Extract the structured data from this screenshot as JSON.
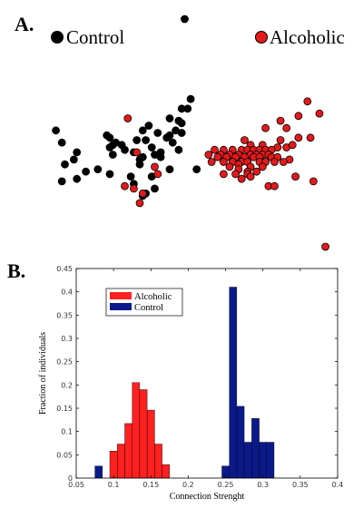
{
  "panel_a": {
    "letter": "A.",
    "legend": [
      {
        "label": "Control",
        "color": "#000000"
      },
      {
        "label": "Alcoholic",
        "color": "#e31a1c"
      }
    ]
  },
  "panel_b": {
    "letter": "B."
  },
  "colors": {
    "control": "#000000",
    "alcoholic": "#e31a1c",
    "control_bar": "#0b1a8a",
    "alcoholic_bar": "#ff2020"
  },
  "chart_data": [
    {
      "type": "scatter",
      "title": "",
      "xlabel": "",
      "ylabel": "",
      "axes_visible": false,
      "xlim": [
        0,
        100
      ],
      "ylim": [
        0,
        100
      ],
      "series": [
        {
          "name": "Control",
          "color": "#000000",
          "points": [
            [
              45,
              97
            ],
            [
              47,
              64
            ],
            [
              44,
              60
            ],
            [
              46,
              60
            ],
            [
              40,
              56
            ],
            [
              43,
              55
            ],
            [
              44,
              54
            ],
            [
              33,
              53
            ],
            [
              31,
              51
            ],
            [
              42,
              51
            ],
            [
              36,
              50
            ],
            [
              44,
              50
            ],
            [
              2,
              51
            ],
            [
              40,
              49
            ],
            [
              19,
              49
            ],
            [
              20,
              48
            ],
            [
              39,
              48
            ],
            [
              29,
              47
            ],
            [
              32,
              47
            ],
            [
              22,
              46
            ],
            [
              21,
              45
            ],
            [
              41,
              46
            ],
            [
              24,
              45
            ],
            [
              4,
              46
            ],
            [
              20,
              44
            ],
            [
              34,
              44
            ],
            [
              25,
              43
            ],
            [
              43,
              43
            ],
            [
              9,
              42
            ],
            [
              28,
              42
            ],
            [
              37,
              42
            ],
            [
              21,
              41
            ],
            [
              35,
              41
            ],
            [
              31,
              40
            ],
            [
              37,
              40
            ],
            [
              30,
              39
            ],
            [
              8,
              39
            ],
            [
              5,
              37
            ],
            [
              30,
              37
            ],
            [
              49,
              35
            ],
            [
              40,
              35
            ],
            [
              12,
              34
            ],
            [
              16,
              35
            ],
            [
              20,
              33
            ],
            [
              27,
              32
            ],
            [
              34,
              32
            ],
            [
              9,
              31
            ],
            [
              4,
              30
            ],
            [
              35,
              27
            ],
            [
              32,
              25
            ],
            [
              31,
              24
            ],
            [
              28,
              29
            ]
          ]
        },
        {
          "name": "Alcoholic",
          "color": "#e31a1c",
          "points": [
            [
              86,
              63
            ],
            [
              83,
              57
            ],
            [
              90,
              58
            ],
            [
              26,
              56
            ],
            [
              77,
              55
            ],
            [
              72,
              52
            ],
            [
              79,
              52
            ],
            [
              83,
              48
            ],
            [
              87,
              48
            ],
            [
              65,
              47
            ],
            [
              77,
              47
            ],
            [
              67,
              45
            ],
            [
              71,
              45
            ],
            [
              76,
              44
            ],
            [
              79,
              44
            ],
            [
              81,
              45
            ],
            [
              55,
              43
            ],
            [
              58,
              43
            ],
            [
              61,
              43
            ],
            [
              64,
              43
            ],
            [
              66,
              43
            ],
            [
              68,
              43
            ],
            [
              70,
              43
            ],
            [
              72,
              43
            ],
            [
              74,
              43
            ],
            [
              57,
              41
            ],
            [
              60,
              41
            ],
            [
              63,
              41
            ],
            [
              67,
              41
            ],
            [
              69,
              41
            ],
            [
              71,
              41
            ],
            [
              73,
              41
            ],
            [
              29,
              42
            ],
            [
              53,
              41
            ],
            [
              56,
              40
            ],
            [
              59,
              40
            ],
            [
              62,
              40
            ],
            [
              65,
              40
            ],
            [
              68,
              40
            ],
            [
              70,
              40
            ],
            [
              74,
              40
            ],
            [
              76,
              40
            ],
            [
              80,
              39
            ],
            [
              54,
              38
            ],
            [
              58,
              38
            ],
            [
              61,
              38
            ],
            [
              64,
              38
            ],
            [
              66,
              38
            ],
            [
              70,
              38
            ],
            [
              72,
              38
            ],
            [
              75,
              38
            ],
            [
              78,
              38
            ],
            [
              63,
              37
            ],
            [
              67,
              36
            ],
            [
              71,
              36
            ],
            [
              60,
              36
            ],
            [
              63,
              35
            ],
            [
              66,
              34
            ],
            [
              69,
              34
            ],
            [
              58,
              33
            ],
            [
              62,
              33
            ],
            [
              66,
              33
            ],
            [
              35,
              36
            ],
            [
              36,
              33
            ],
            [
              67,
              32
            ],
            [
              64,
              31
            ],
            [
              82,
              32
            ],
            [
              88,
              30
            ],
            [
              25,
              28
            ],
            [
              73,
              28
            ],
            [
              75,
              28
            ],
            [
              31,
              25
            ],
            [
              28,
              27
            ],
            [
              30,
              21
            ],
            [
              92,
              3
            ]
          ]
        }
      ]
    },
    {
      "type": "bar",
      "title": "",
      "xlabel": "Connection Strenght",
      "ylabel": "Fraction of individuals",
      "xlim": [
        0.05,
        0.4
      ],
      "ylim": [
        0,
        0.45
      ],
      "xticks": [
        "0.05",
        "0.1",
        "0.15",
        "0.2",
        "0.25",
        "0.3",
        "0.35",
        "0.4"
      ],
      "yticks": [
        "0",
        "0.05",
        "0.1",
        "0.15",
        "0.2",
        "0.25",
        "0.3",
        "0.35",
        "0.4",
        "0.45"
      ],
      "bin_width": 0.01,
      "legend_position": "top-left",
      "series": [
        {
          "name": "Alcoholic",
          "color": "#ff2020",
          "bin_centers": [
            0.1,
            0.11,
            0.12,
            0.13,
            0.14,
            0.15,
            0.16,
            0.17,
            0.18,
            0.19,
            0.2
          ],
          "values": [
            0.058,
            0.073,
            0.117,
            0.205,
            0.19,
            0.146,
            0.073,
            0.029,
            0,
            0,
            0
          ]
        },
        {
          "name": "Control",
          "color": "#0b1a8a",
          "bin_centers": [
            0.08,
            0.25,
            0.26,
            0.27,
            0.28,
            0.29,
            0.3,
            0.31,
            0.32,
            0.33,
            0.34,
            0.35,
            0.36,
            0.37,
            0.38
          ],
          "values": [
            0.026,
            0.026,
            0.41,
            0.154,
            0.077,
            0.128,
            0.077,
            0.077,
            0,
            0,
            0,
            0,
            0,
            0,
            0
          ]
        }
      ]
    }
  ]
}
